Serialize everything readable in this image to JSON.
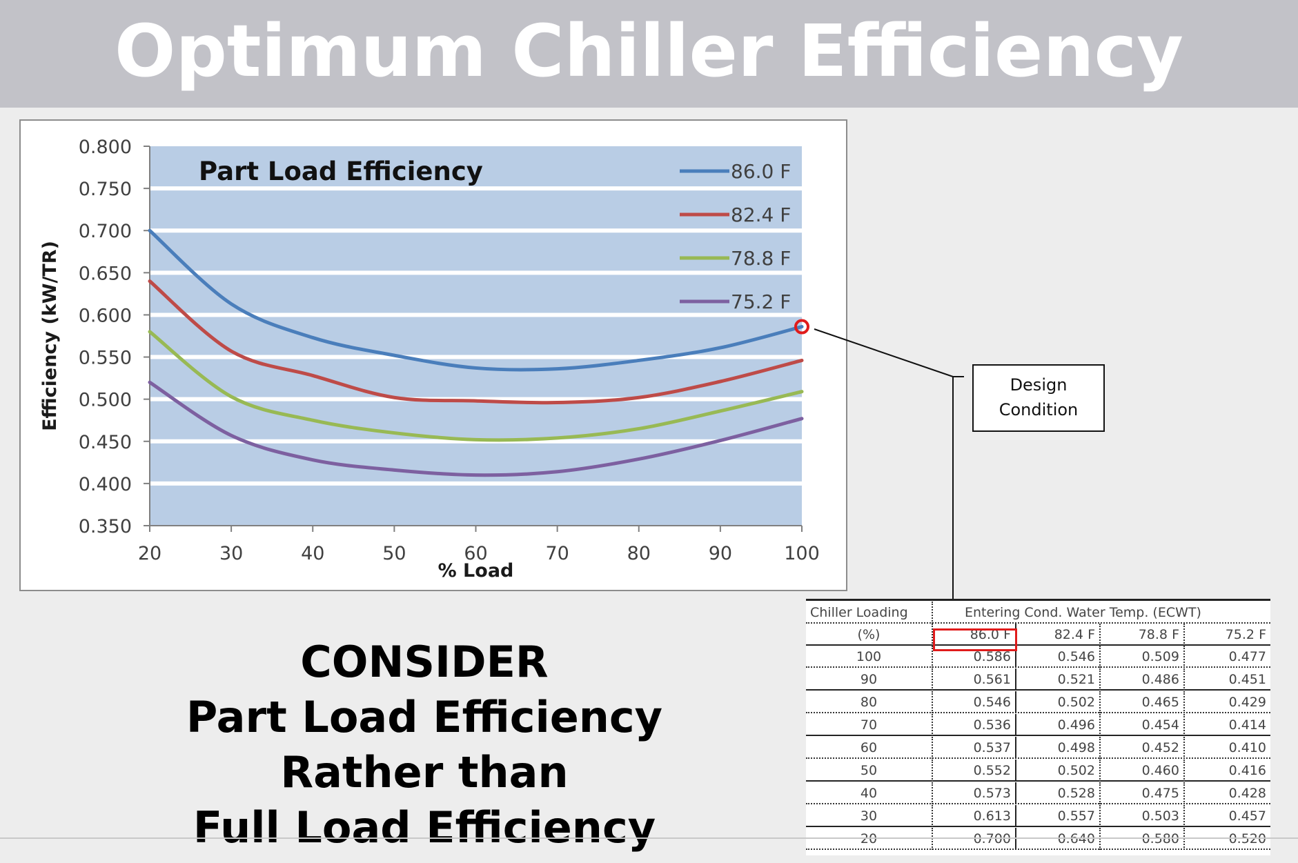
{
  "page": {
    "title": "Optimum Chiller Efficiency"
  },
  "chart_data": {
    "type": "line",
    "title": "Part Load Efficiency",
    "xlabel": "% Load",
    "ylabel": "Efficiency (kW/TR)",
    "xlim": [
      20,
      100
    ],
    "ylim": [
      0.35,
      0.8
    ],
    "x_ticks": [
      "20",
      "30",
      "40",
      "50",
      "60",
      "70",
      "80",
      "90",
      "100"
    ],
    "y_ticks": [
      "0.350",
      "0.400",
      "0.450",
      "0.500",
      "0.550",
      "0.600",
      "0.650",
      "0.700",
      "0.750",
      "0.800"
    ],
    "x": [
      20,
      30,
      40,
      50,
      60,
      70,
      80,
      90,
      100
    ],
    "series": [
      {
        "name": "86.0 F",
        "color": "#4a7ebb",
        "values": [
          0.7,
          0.613,
          0.573,
          0.552,
          0.537,
          0.536,
          0.546,
          0.561,
          0.586
        ]
      },
      {
        "name": "82.4 F",
        "color": "#be4b48",
        "values": [
          0.64,
          0.557,
          0.528,
          0.502,
          0.498,
          0.496,
          0.502,
          0.521,
          0.546
        ]
      },
      {
        "name": "78.8 F",
        "color": "#98b954",
        "values": [
          0.58,
          0.503,
          0.475,
          0.46,
          0.452,
          0.454,
          0.465,
          0.486,
          0.509
        ]
      },
      {
        "name": "75.2 F",
        "color": "#7d60a0",
        "values": [
          0.52,
          0.457,
          0.428,
          0.416,
          0.41,
          0.414,
          0.429,
          0.451,
          0.477
        ]
      }
    ],
    "legend_position": "top-right",
    "marker": {
      "series": "86.0 F",
      "x": 100,
      "y": 0.586,
      "color": "#e01b1b"
    },
    "band_color": "#b9cde5"
  },
  "annotation": {
    "line1": "Design",
    "line2": "Condition"
  },
  "message": {
    "line1": "CONSIDER",
    "line2": "Part Load Efficiency",
    "line3": "Rather than",
    "line4": "Full Load Efficiency"
  },
  "table": {
    "header1": {
      "col1": "Chiller Loading",
      "group": "Entering Cond. Water Temp. (ECWT)"
    },
    "header2": [
      "(%)",
      "86.0 F",
      "82.4 F",
      "78.8 F",
      "75.2 F"
    ],
    "rows": [
      [
        "100",
        "0.586",
        "0.546",
        "0.509",
        "0.477"
      ],
      [
        "90",
        "0.561",
        "0.521",
        "0.486",
        "0.451"
      ],
      [
        "80",
        "0.546",
        "0.502",
        "0.465",
        "0.429"
      ],
      [
        "70",
        "0.536",
        "0.496",
        "0.454",
        "0.414"
      ],
      [
        "60",
        "0.537",
        "0.498",
        "0.452",
        "0.410"
      ],
      [
        "50",
        "0.552",
        "0.502",
        "0.460",
        "0.416"
      ],
      [
        "40",
        "0.573",
        "0.528",
        "0.475",
        "0.428"
      ],
      [
        "30",
        "0.613",
        "0.557",
        "0.503",
        "0.457"
      ],
      [
        "20",
        "0.700",
        "0.640",
        "0.580",
        "0.520"
      ]
    ],
    "highlight_color": "#e01b1b"
  }
}
